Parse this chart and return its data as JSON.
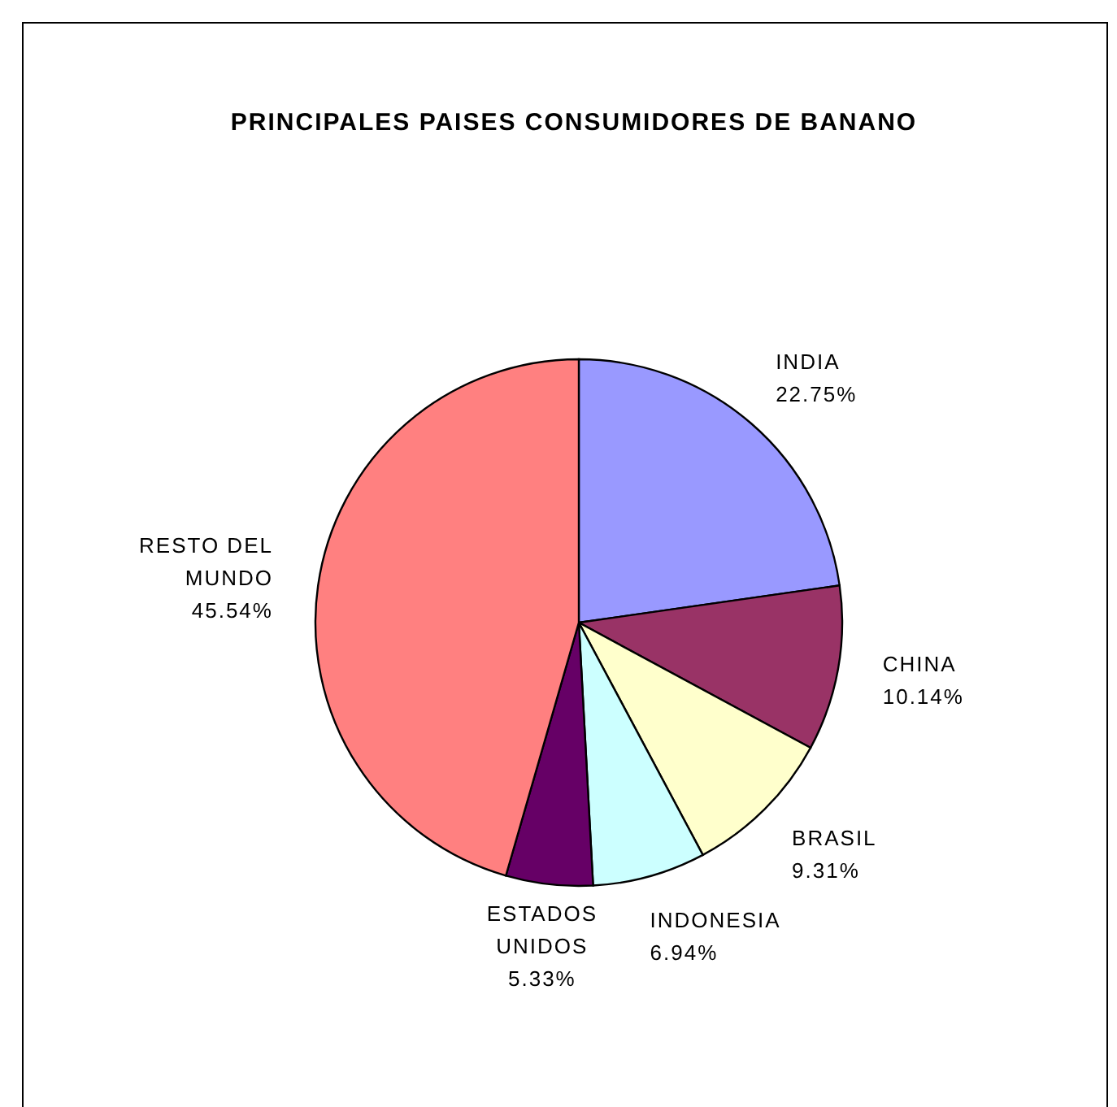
{
  "chart_data": {
    "type": "pie",
    "title": "PRINCIPALES PAISES CONSUMIDORES DE BANANO",
    "categories": [
      "INDIA",
      "CHINA",
      "BRASIL",
      "INDONESIA",
      "ESTADOS UNIDOS",
      "RESTO DEL MUNDO"
    ],
    "values": [
      22.75,
      10.14,
      9.31,
      6.94,
      5.33,
      45.54
    ],
    "colors": [
      "#9999ff",
      "#993366",
      "#ffffcc",
      "#ccffff",
      "#660066",
      "#ff8080"
    ],
    "value_labels": [
      "22.75%",
      "10.14%",
      "9.31%",
      "6.94%",
      "5.33%",
      "45.54%"
    ]
  }
}
